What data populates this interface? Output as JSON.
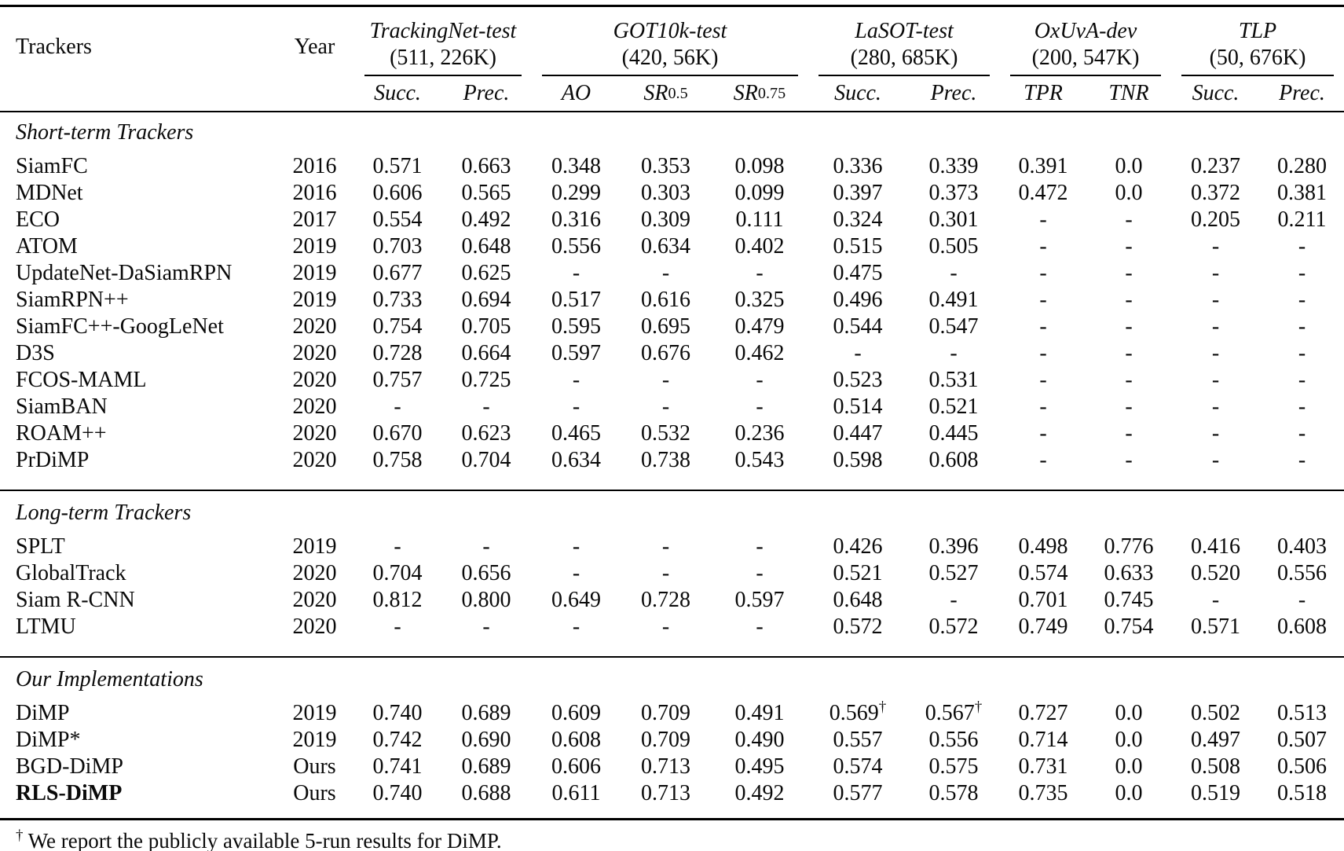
{
  "table": {
    "col1_header": "Trackers",
    "col2_header": "Year",
    "groups": [
      {
        "label": "TrackingNet-test",
        "size": "(511, 226K)",
        "subs": [
          {
            "main": "Succ."
          },
          {
            "main": "Prec."
          }
        ]
      },
      {
        "label": "GOT10k-test",
        "size": "(420, 56K)",
        "subs": [
          {
            "main": "AO"
          },
          {
            "main": "SR",
            "sub": "0.5"
          },
          {
            "main": "SR",
            "sub": "0.75"
          }
        ]
      },
      {
        "label": "LaSOT-test",
        "size": "(280, 685K)",
        "subs": [
          {
            "main": "Succ."
          },
          {
            "main": "Prec."
          }
        ]
      },
      {
        "label": "OxUvA-dev",
        "size": "(200, 547K)",
        "subs": [
          {
            "main": "TPR"
          },
          {
            "main": "TNR"
          }
        ]
      },
      {
        "label": "TLP",
        "size": "(50, 676K)",
        "subs": [
          {
            "main": "Succ."
          },
          {
            "main": "Prec."
          }
        ]
      }
    ],
    "sections": [
      {
        "label": "Short-term Trackers",
        "rows": [
          {
            "tracker": "SiamFC",
            "year": "2016",
            "values": [
              "0.571",
              "0.663",
              "0.348",
              "0.353",
              "0.098",
              "0.336",
              "0.339",
              "0.391",
              "0.0",
              "0.237",
              "0.280"
            ]
          },
          {
            "tracker": "MDNet",
            "year": "2016",
            "values": [
              "0.606",
              "0.565",
              "0.299",
              "0.303",
              "0.099",
              "0.397",
              "0.373",
              "0.472",
              "0.0",
              "0.372",
              "0.381"
            ]
          },
          {
            "tracker": "ECO",
            "year": "2017",
            "values": [
              "0.554",
              "0.492",
              "0.316",
              "0.309",
              "0.111",
              "0.324",
              "0.301",
              "-",
              "-",
              "0.205",
              "0.211"
            ]
          },
          {
            "tracker": "ATOM",
            "year": "2019",
            "values": [
              "0.703",
              "0.648",
              "0.556",
              "0.634",
              "0.402",
              "0.515",
              "0.505",
              "-",
              "-",
              "-",
              "-"
            ]
          },
          {
            "tracker": "UpdateNet-DaSiamRPN",
            "year": "2019",
            "values": [
              "0.677",
              "0.625",
              "-",
              "-",
              "-",
              "0.475",
              "-",
              "-",
              "-",
              "-",
              "-"
            ]
          },
          {
            "tracker": "SiamRPN++",
            "year": "2019",
            "values": [
              "0.733",
              "0.694",
              "0.517",
              "0.616",
              "0.325",
              "0.496",
              "0.491",
              "-",
              "-",
              "-",
              "-"
            ]
          },
          {
            "tracker": "SiamFC++-GoogLeNet",
            "year": "2020",
            "values": [
              "0.754",
              "0.705",
              "0.595",
              "0.695",
              "0.479",
              "0.544",
              "0.547",
              "-",
              "-",
              "-",
              "-"
            ]
          },
          {
            "tracker": "D3S",
            "year": "2020",
            "values": [
              "0.728",
              "0.664",
              "0.597",
              "0.676",
              "0.462",
              "-",
              "-",
              "-",
              "-",
              "-",
              "-"
            ]
          },
          {
            "tracker": "FCOS-MAML",
            "year": "2020",
            "values": [
              "0.757",
              "0.725",
              "-",
              "-",
              "-",
              "0.523",
              "0.531",
              "-",
              "-",
              "-",
              "-"
            ]
          },
          {
            "tracker": "SiamBAN",
            "year": "2020",
            "values": [
              "-",
              "-",
              "-",
              "-",
              "-",
              "0.514",
              "0.521",
              "-",
              "-",
              "-",
              "-"
            ]
          },
          {
            "tracker": "ROAM++",
            "year": "2020",
            "values": [
              "0.670",
              "0.623",
              "0.465",
              "0.532",
              "0.236",
              "0.447",
              "0.445",
              "-",
              "-",
              "-",
              "-"
            ]
          },
          {
            "tracker": "PrDiMP",
            "year": "2020",
            "values": [
              "0.758",
              "0.704",
              "0.634",
              "0.738",
              "0.543",
              "0.598",
              "0.608",
              "-",
              "-",
              "-",
              "-"
            ]
          }
        ]
      },
      {
        "label": "Long-term Trackers",
        "rows": [
          {
            "tracker": "SPLT",
            "year": "2019",
            "values": [
              "-",
              "-",
              "-",
              "-",
              "-",
              "0.426",
              "0.396",
              "0.498",
              "0.776",
              "0.416",
              "0.403"
            ]
          },
          {
            "tracker": "GlobalTrack",
            "year": "2020",
            "values": [
              "0.704",
              "0.656",
              "-",
              "-",
              "-",
              "0.521",
              "0.527",
              "0.574",
              "0.633",
              "0.520",
              "0.556"
            ]
          },
          {
            "tracker": "Siam R-CNN",
            "year": "2020",
            "values": [
              "0.812",
              "0.800",
              "0.649",
              "0.728",
              "0.597",
              "0.648",
              "-",
              "0.701",
              "0.745",
              "-",
              "-"
            ]
          },
          {
            "tracker": "LTMU",
            "year": "2020",
            "values": [
              "-",
              "-",
              "-",
              "-",
              "-",
              "0.572",
              "0.572",
              "0.749",
              "0.754",
              "0.571",
              "0.608"
            ]
          }
        ]
      },
      {
        "label": "Our Implementations",
        "rows": [
          {
            "tracker": "DiMP",
            "year": "2019",
            "values": [
              "0.740",
              "0.689",
              "0.609",
              "0.709",
              "0.491",
              "0.569†",
              "0.567†",
              "0.727",
              "0.0",
              "0.502",
              "0.513"
            ]
          },
          {
            "tracker": "DiMP*",
            "year": "2019",
            "values": [
              "0.742",
              "0.690",
              "0.608",
              "0.709",
              "0.490",
              "0.557",
              "0.556",
              "0.714",
              "0.0",
              "0.497",
              "0.507"
            ]
          },
          {
            "tracker": "BGD-DiMP",
            "year": "Ours",
            "values": [
              "0.741",
              "0.689",
              "0.606",
              "0.713",
              "0.495",
              "0.574",
              "0.575",
              "0.731",
              "0.0",
              "0.508",
              "0.506"
            ]
          },
          {
            "tracker": "RLS-DiMP",
            "year": "Ours",
            "bold": true,
            "values": [
              "0.740",
              "0.688",
              "0.611",
              "0.713",
              "0.492",
              "0.577",
              "0.578",
              "0.735",
              "0.0",
              "0.519",
              "0.518"
            ]
          }
        ]
      }
    ],
    "footnote": {
      "marker": "†",
      "text": "We report the publicly available 5-run results for DiMP."
    }
  }
}
